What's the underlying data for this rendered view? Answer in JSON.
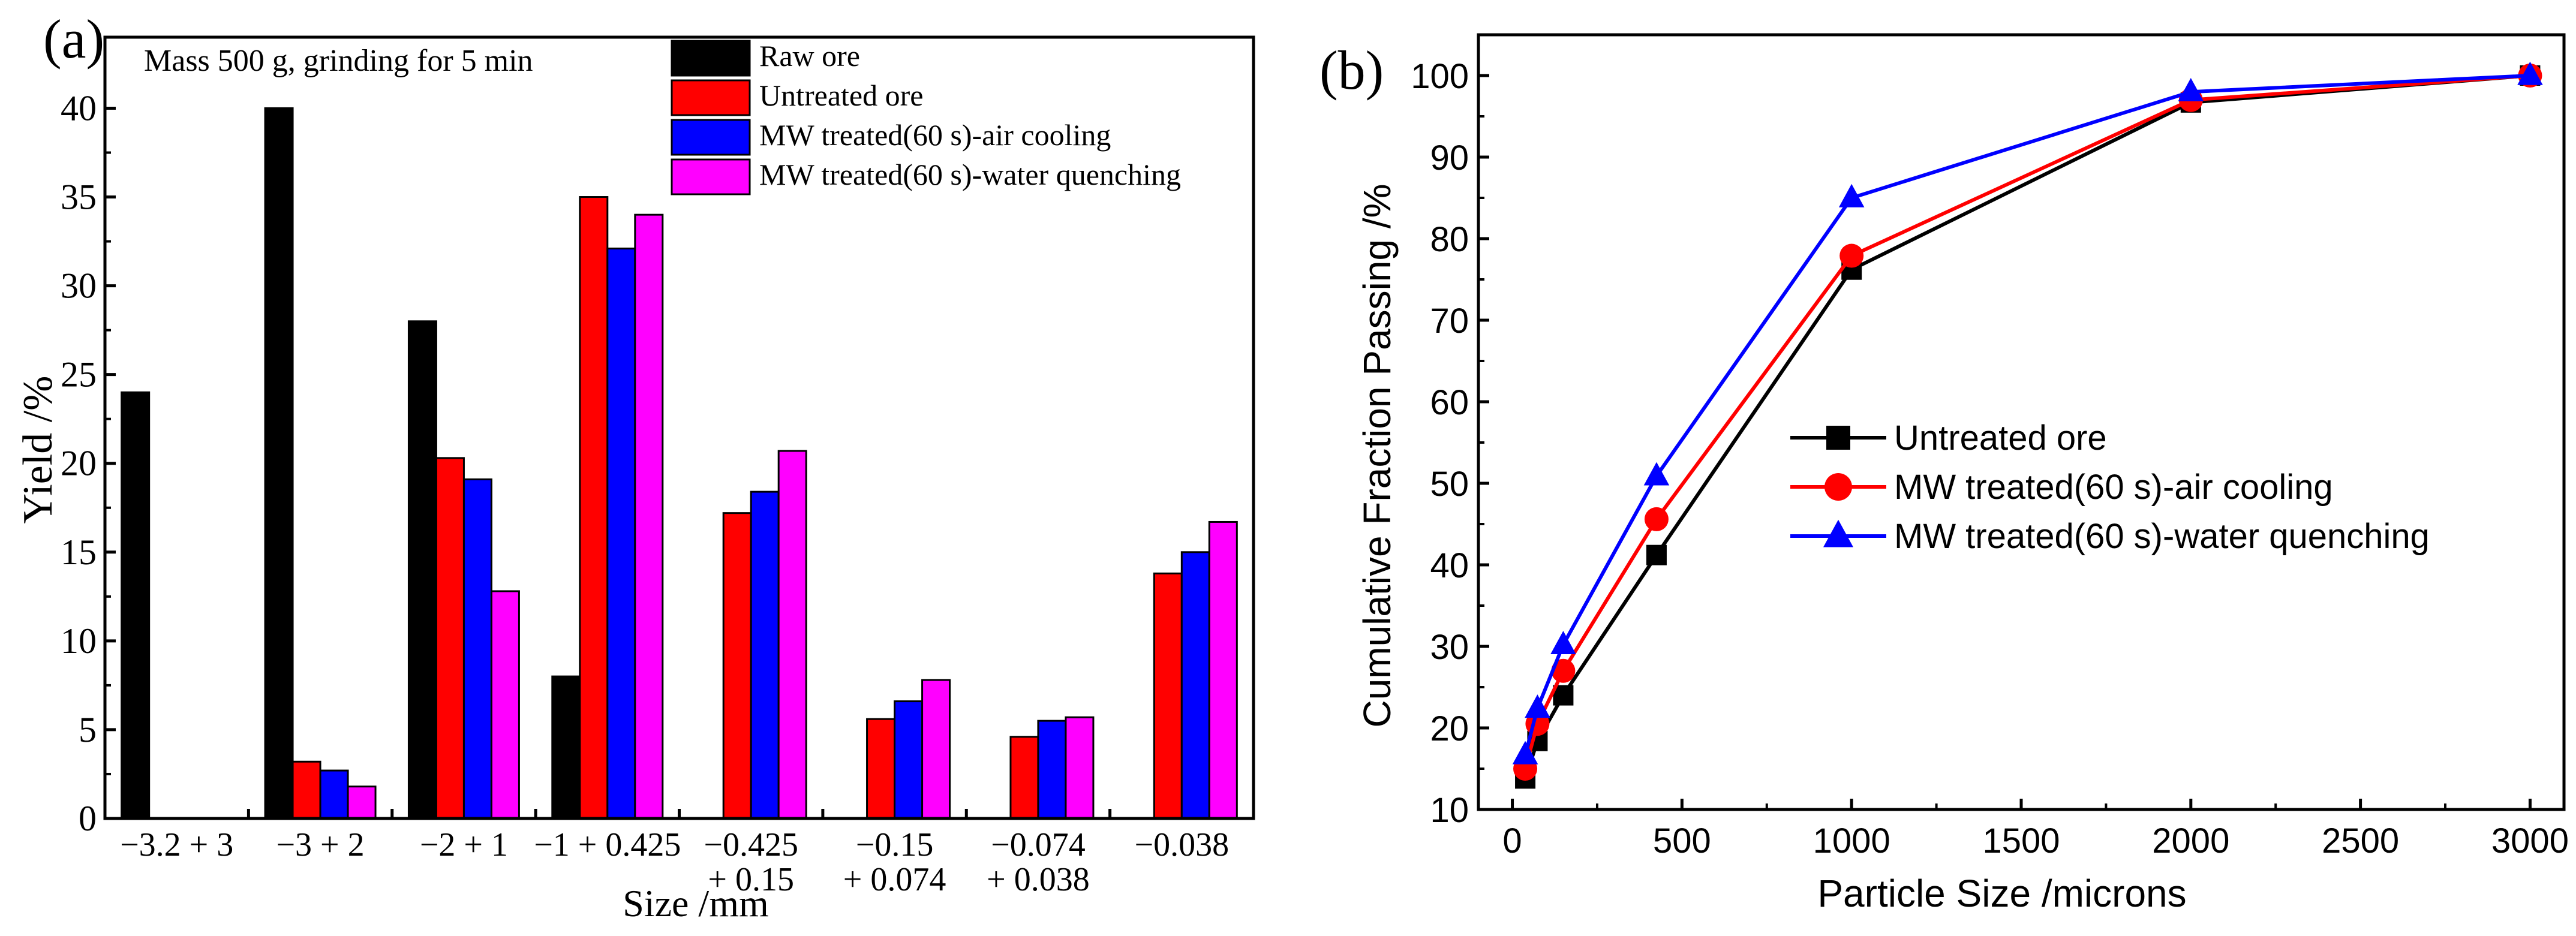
{
  "chart_data": [
    {
      "panel": "(a)",
      "type": "bar",
      "title": "",
      "annotation": "Mass 500 g, grinding for 5 min",
      "xlabel": "Size /mm",
      "ylabel": "Yield /%",
      "ylim": [
        0,
        44
      ],
      "yticks": [
        0,
        5,
        10,
        15,
        20,
        25,
        30,
        35,
        40
      ],
      "legend_position": "top-right",
      "categories": [
        [
          "−3.2 + 3"
        ],
        [
          "−3 + 2"
        ],
        [
          "−2 + 1"
        ],
        [
          "−1 + 0.425"
        ],
        [
          "−0.425",
          "+ 0.15"
        ],
        [
          "−0.15",
          "+ 0.074"
        ],
        [
          "−0.074",
          "+ 0.038"
        ],
        [
          "−0.038"
        ]
      ],
      "series": [
        {
          "name": "Raw ore",
          "color": "#000000",
          "values": [
            24,
            40,
            28,
            8,
            null,
            null,
            null,
            null
          ]
        },
        {
          "name": "Untreated ore",
          "color": "#ff0000",
          "values": [
            null,
            3.2,
            20.3,
            35,
            17.2,
            5.6,
            4.6,
            13.8
          ]
        },
        {
          "name": "MW treated(60 s)-air cooling",
          "color": "#0000ff",
          "values": [
            null,
            2.7,
            19.1,
            32.1,
            18.4,
            6.6,
            5.5,
            15
          ]
        },
        {
          "name": "MW treated(60 s)-water quenching",
          "color": "#ff00ff",
          "values": [
            null,
            1.8,
            12.8,
            34,
            20.7,
            7.8,
            5.7,
            16.7
          ]
        }
      ]
    },
    {
      "panel": "(b)",
      "type": "line",
      "title": "",
      "xlabel": "Particle Size /microns",
      "ylabel": "Cumulative Fraction Passing /%",
      "xlim": [
        -100,
        3100
      ],
      "ylim": [
        10,
        105
      ],
      "xticks": [
        0,
        500,
        1000,
        1500,
        2000,
        2500,
        3000
      ],
      "yticks": [
        10,
        20,
        30,
        40,
        50,
        60,
        70,
        80,
        90,
        100
      ],
      "legend_position": "center-right",
      "x": [
        38,
        74,
        150,
        425,
        1000,
        2000,
        3000
      ],
      "series": [
        {
          "name": "Untreated ore",
          "color": "#000000",
          "marker": "square",
          "values": [
            13.8,
            18.4,
            24,
            41.2,
            76.2,
            96.7,
            100
          ]
        },
        {
          "name": "MW treated(60 s)-air cooling",
          "color": "#ff0000",
          "marker": "circle",
          "values": [
            15,
            20.5,
            27,
            45.6,
            77.9,
            97,
            100
          ]
        },
        {
          "name": "MW treated(60 s)-water quenching",
          "color": "#0000ff",
          "marker": "triangle",
          "values": [
            16.7,
            22.4,
            30.2,
            50.9,
            85,
            98,
            100
          ]
        }
      ]
    }
  ]
}
